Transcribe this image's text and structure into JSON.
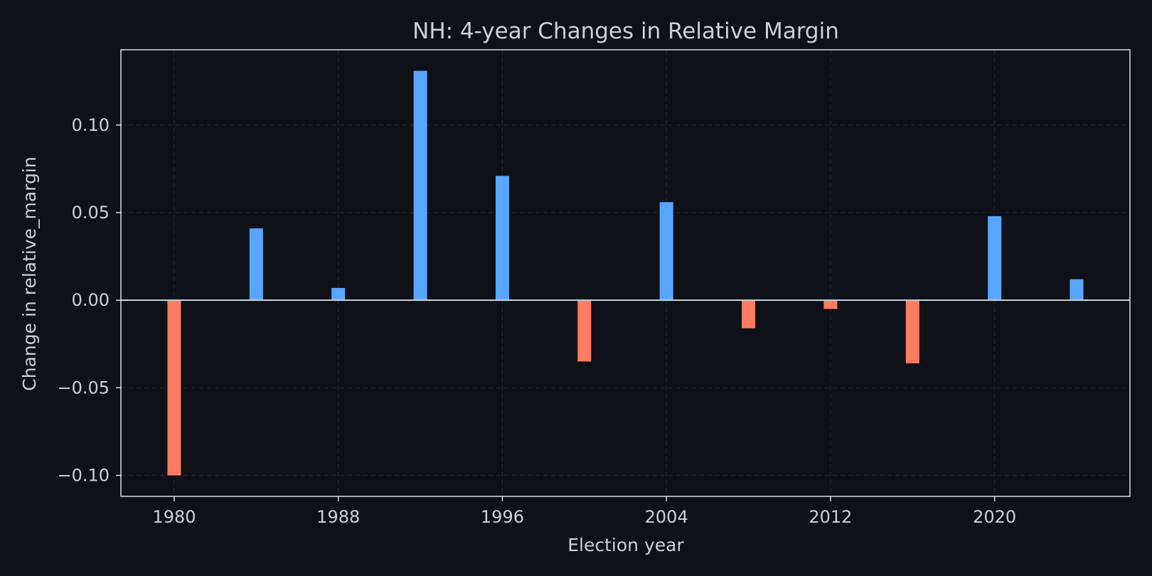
{
  "chart_data": {
    "type": "bar",
    "title": "NH: 4-year Changes in Relative Margin",
    "xlabel": "Election year",
    "ylabel": "Change in relative_margin",
    "x": [
      1980,
      1984,
      1988,
      1992,
      1996,
      2000,
      2004,
      2008,
      2012,
      2016,
      2020,
      2024
    ],
    "values": [
      -0.1,
      0.041,
      0.007,
      0.131,
      0.071,
      -0.035,
      0.056,
      -0.016,
      -0.005,
      -0.036,
      0.048,
      0.012
    ],
    "x_ticks": [
      1980,
      1988,
      1996,
      2004,
      2012,
      2020
    ],
    "x_tick_labels": [
      "1980",
      "1988",
      "1996",
      "2004",
      "2012",
      "2020"
    ],
    "y_ticks": [
      -0.1,
      -0.05,
      0.0,
      0.05,
      0.1
    ],
    "y_tick_labels": [
      "−0.10",
      "−0.05",
      "0.00",
      "0.05",
      "0.10"
    ],
    "xlim": [
      1977.4,
      2026.6
    ],
    "ylim": [
      -0.112,
      0.143
    ],
    "grid": true,
    "zero_line": true,
    "colors": {
      "positive": "#58a6ff",
      "negative": "#ff7b62",
      "background": "#0e1117",
      "axes": "#e6edf3",
      "text": "#c9d1d9",
      "grid": "#3a3f47"
    }
  }
}
